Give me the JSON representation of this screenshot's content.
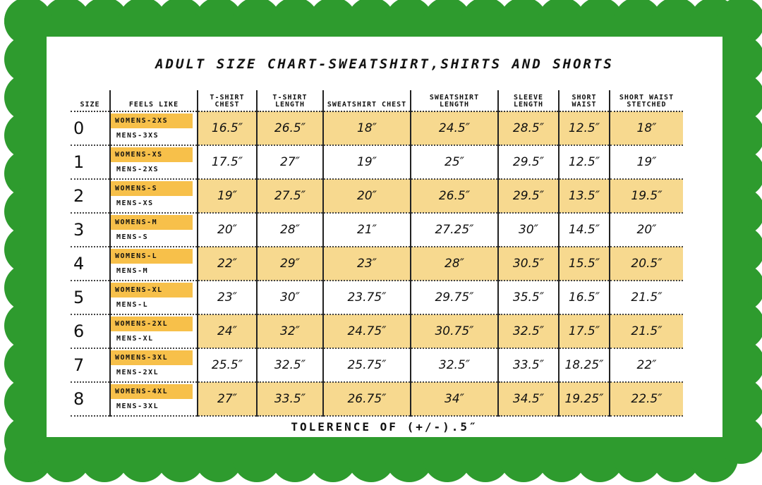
{
  "title": "ADULT SIZE CHART-SWEATSHIRT,SHIRTS AND SHORTS",
  "colors": {
    "border": "#2e9b2e",
    "shade": "#f7d98f",
    "women_tag": "#f7c04a"
  },
  "headers": {
    "size": "SIZE",
    "feels": "FEELS LIKE",
    "tshirt_chest": "T-SHIRT CHEST",
    "tshirt_length": "T-SHIRT LENGTH",
    "sweatshirt_chest": "SWEATSHIRT CHEST",
    "sweatshirt_length": "SWEATSHIRT LENGTH",
    "sleeve_length": "SLEEVE LENGTH",
    "short_waist": "SHORT WAIST",
    "short_waist_stretched": "SHORT WAIST STETCHED"
  },
  "rows": [
    {
      "size": "0",
      "women": "WOMENS-2XS",
      "men": "MENS-3XS",
      "v": [
        "16.5″",
        "26.5″",
        "18″",
        "24.5″",
        "28.5″",
        "12.5″",
        "18″"
      ]
    },
    {
      "size": "1",
      "women": "WOMENS-XS",
      "men": "MENS-2XS",
      "v": [
        "17.5″",
        "27″",
        "19″",
        "25″",
        "29.5″",
        "12.5″",
        "19″"
      ]
    },
    {
      "size": "2",
      "women": "WOMENS-S",
      "men": "MENS-XS",
      "v": [
        "19″",
        "27.5″",
        "20″",
        "26.5″",
        "29.5″",
        "13.5″",
        "19.5″"
      ]
    },
    {
      "size": "3",
      "women": "WOMENS-M",
      "men": "MENS-S",
      "v": [
        "20″",
        "28″",
        "21″",
        "27.25″",
        "30″",
        "14.5″",
        "20″"
      ]
    },
    {
      "size": "4",
      "women": "WOMENS-L",
      "men": "MENS-M",
      "v": [
        "22″",
        "29″",
        "23″",
        "28″",
        "30.5″",
        "15.5″",
        "20.5″"
      ]
    },
    {
      "size": "5",
      "women": "WOMENS-XL",
      "men": "MENS-L",
      "v": [
        "23″",
        "30″",
        "23.75″",
        "29.75″",
        "35.5″",
        "16.5″",
        "21.5″"
      ]
    },
    {
      "size": "6",
      "women": "WOMENS-2XL",
      "men": "MENS-XL",
      "v": [
        "24″",
        "32″",
        "24.75″",
        "30.75″",
        "32.5″",
        "17.5″",
        "21.5″"
      ]
    },
    {
      "size": "7",
      "women": "WOMENS-3XL",
      "men": "MENS-2XL",
      "v": [
        "25.5″",
        "32.5″",
        "25.75″",
        "32.5″",
        "33.5″",
        "18.25″",
        "22″"
      ]
    },
    {
      "size": "8",
      "women": "WOMENS-4XL",
      "men": "MENS-3XL",
      "v": [
        "27″",
        "33.5″",
        "26.75″",
        "34″",
        "34.5″",
        "19.25″",
        "22.5″"
      ]
    }
  ],
  "footer": "TOLERENCE OF (+/-).5″"
}
